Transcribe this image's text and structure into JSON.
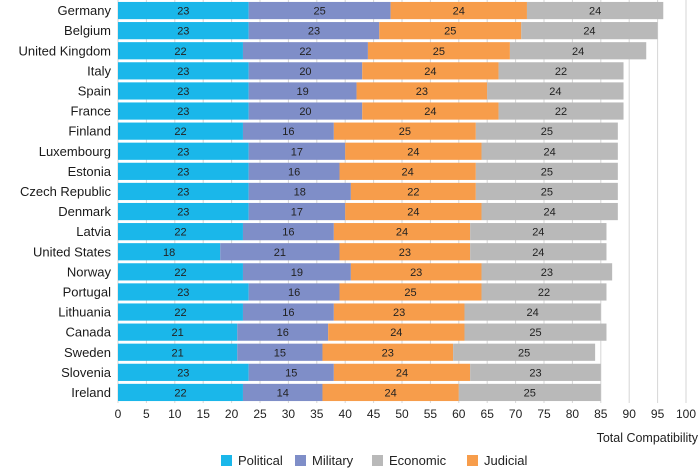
{
  "chart_data": {
    "type": "bar",
    "orientation": "horizontal",
    "stacked": true,
    "title": "",
    "xlabel": "Total Compatibility",
    "ylabel": "",
    "xlim": [
      0,
      100
    ],
    "x_ticks": [
      0,
      5,
      10,
      15,
      20,
      25,
      30,
      35,
      40,
      45,
      50,
      55,
      60,
      65,
      70,
      75,
      80,
      85,
      90,
      95,
      100
    ],
    "grid": true,
    "legend_position": "bottom",
    "categories": [
      "Germany",
      "Belgium",
      "United Kingdom",
      "Italy",
      "Spain",
      "France",
      "Finland",
      "Luxembourg",
      "Estonia",
      "Czech Republic",
      "Denmark",
      "Latvia",
      "United States",
      "Norway",
      "Portugal",
      "Lithuania",
      "Canada",
      "Sweden",
      "Slovenia",
      "Ireland"
    ],
    "series": [
      {
        "name": "Political",
        "color": "#1ab7ea",
        "values": [
          23,
          23,
          22,
          23,
          23,
          23,
          22,
          23,
          23,
          23,
          23,
          22,
          18,
          22,
          23,
          22,
          21,
          21,
          23,
          22
        ]
      },
      {
        "name": "Military",
        "color": "#7f8ec8",
        "values": [
          25,
          23,
          22,
          20,
          19,
          20,
          16,
          17,
          16,
          18,
          17,
          16,
          21,
          19,
          16,
          16,
          16,
          15,
          15,
          14
        ]
      },
      {
        "name": "Judicial",
        "color": "#f79d4b",
        "values": [
          24,
          25,
          25,
          24,
          23,
          24,
          25,
          24,
          24,
          22,
          24,
          24,
          23,
          23,
          25,
          23,
          24,
          23,
          24,
          24
        ]
      },
      {
        "name": "Economic",
        "color": "#b9b9b9",
        "values": [
          24,
          24,
          24,
          22,
          24,
          22,
          25,
          24,
          25,
          25,
          24,
          24,
          24,
          23,
          22,
          24,
          25,
          25,
          23,
          25
        ]
      }
    ],
    "legend_order": [
      "Political",
      "Military",
      "Economic",
      "Judicial"
    ]
  }
}
